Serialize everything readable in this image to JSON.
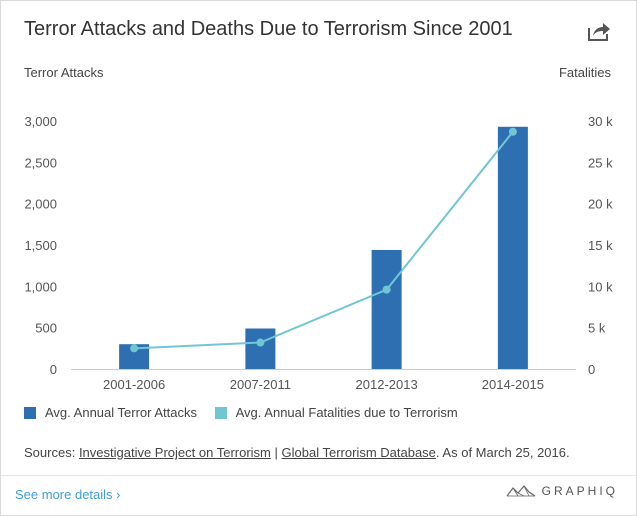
{
  "title": "Terror Attacks and Deaths Due to Terrorism Since 2001",
  "share_icon": "share-icon",
  "left_axis_title": "Terror Attacks",
  "right_axis_title": "Fatalities",
  "legend": [
    {
      "label": "Avg. Annual Terror Attacks",
      "color": "#2e6fb1"
    },
    {
      "label": "Avg. Annual Fatalities due to Terrorism",
      "color": "#71c6d4"
    }
  ],
  "sources": {
    "prefix": "Sources:",
    "link1": "Investigative Project on Terrorism",
    "separator": "|",
    "link2": "Global Terrorism Database",
    "suffix": ". As of March 25, 2016."
  },
  "footer": {
    "more_label": "See more details ›",
    "brand": "GRAPHIQ"
  },
  "chart_data": {
    "type": "bar",
    "categories": [
      "2001-2006",
      "2007-2011",
      "2012-2013",
      "2014-2015"
    ],
    "series": [
      {
        "name": "Avg. Annual Terror Attacks",
        "type": "bar",
        "axis": "left",
        "values": [
          300,
          490,
          1440,
          2930
        ],
        "color": "#2e6fb1"
      },
      {
        "name": "Avg. Annual Fatalities due to Terrorism",
        "type": "line",
        "axis": "right",
        "values": [
          2500,
          3200,
          9600,
          28700
        ],
        "color": "#71c6d4"
      }
    ],
    "left_axis": {
      "title": "Terror Attacks",
      "ylim": [
        0,
        3000
      ],
      "ticks": [
        0,
        500,
        1000,
        1500,
        2000,
        2500,
        3000
      ],
      "tick_labels": [
        "0",
        "500",
        "1,000",
        "1,500",
        "2,000",
        "2,500",
        "3,000"
      ]
    },
    "right_axis": {
      "title": "Fatalities",
      "ylim": [
        0,
        30000
      ],
      "ticks": [
        0,
        5000,
        10000,
        15000,
        20000,
        25000,
        30000
      ],
      "tick_labels": [
        "0",
        "5 k",
        "10 k",
        "15 k",
        "20 k",
        "25 k",
        "30 k"
      ]
    },
    "grid": false,
    "legend_position": "bottom"
  }
}
